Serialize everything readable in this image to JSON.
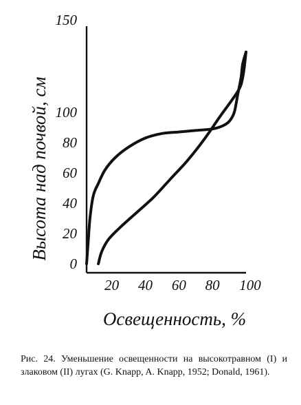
{
  "chart_data": {
    "type": "line",
    "xlabel": "Освещенность, %",
    "ylabel": "Высота над почвой, см",
    "xlim": [
      5,
      100
    ],
    "ylim": [
      0,
      150
    ],
    "x_ticks": [
      20,
      40,
      60,
      80,
      100
    ],
    "y_ticks": [
      0,
      20,
      40,
      60,
      80,
      100,
      150
    ],
    "grid": false,
    "legend": "none",
    "series": [
      {
        "x": [
          5,
          6,
          7,
          9,
          12,
          16,
          22,
          30,
          40,
          50,
          60,
          70,
          80,
          86,
          90,
          93,
          95,
          97,
          98,
          100
        ],
        "y": [
          0,
          15,
          30,
          45,
          53,
          62,
          70,
          77,
          83,
          86,
          87,
          88,
          89,
          91,
          94,
          100,
          110,
          120,
          128,
          135
        ]
      },
      {
        "x": [
          12,
          14,
          18,
          25,
          35,
          45,
          55,
          65,
          75,
          85,
          95,
          98,
          100
        ],
        "y": [
          0,
          8,
          16,
          24,
          34,
          44,
          56,
          68,
          82,
          98,
          112,
          120,
          135
        ]
      }
    ]
  },
  "caption": "Рис. 24. Уменьшение освещенности на высокотравном (I) и злаковом (II) лугах (G. Knapp, A. Knapp, 1952; Donald, 1961)."
}
